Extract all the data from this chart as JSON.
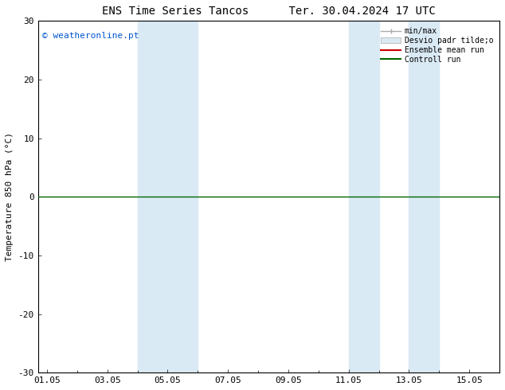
{
  "title": "ENS Time Series Tancos      Ter. 30.04.2024 17 UTC",
  "ylabel": "Temperature 850 hPa (°C)",
  "ylim": [
    -30,
    30
  ],
  "yticks": [
    -30,
    -20,
    -10,
    0,
    10,
    20,
    30
  ],
  "xtick_labels": [
    "01.05",
    "03.05",
    "05.05",
    "07.05",
    "09.05",
    "11.05",
    "13.05",
    "15.05"
  ],
  "xtick_positions": [
    0,
    2,
    4,
    6,
    8,
    10,
    12,
    14
  ],
  "xlim": [
    -0.3,
    15.0
  ],
  "shaded_bands": [
    {
      "x_start": 3.0,
      "x_end": 4.0
    },
    {
      "x_start": 4.0,
      "x_end": 5.0
    },
    {
      "x_start": 10.0,
      "x_end": 11.0
    },
    {
      "x_start": 12.0,
      "x_end": 13.0
    }
  ],
  "shade_color": "#daeaf5",
  "zero_line_color": "#006600",
  "legend_labels": [
    "min/max",
    "Desvio padr tilde;o",
    "Ensemble mean run",
    "Controll run"
  ],
  "legend_colors_line": [
    "#aaaaaa",
    "#cccccc",
    "#cc0000",
    "#006600"
  ],
  "copyright_text": "© weatheronline.pt",
  "copyright_color": "#0055cc",
  "background_color": "#ffffff",
  "plot_bg_color": "#ffffff",
  "title_fontsize": 10,
  "axis_fontsize": 8,
  "tick_fontsize": 8
}
